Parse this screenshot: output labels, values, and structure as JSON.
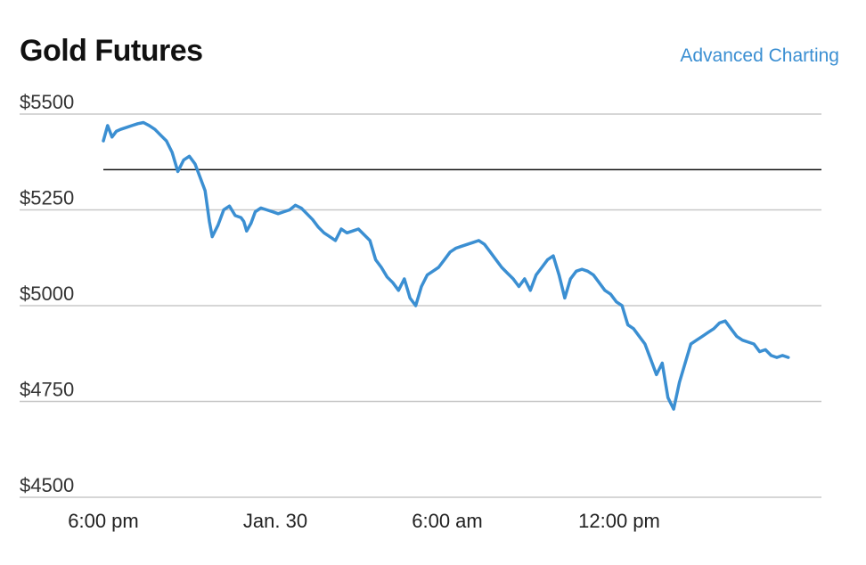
{
  "header": {
    "title": "Gold Futures",
    "link_label": "Advanced Charting"
  },
  "colors": {
    "series": "#3b8fd2",
    "gridline": "#c8c8c8",
    "reference_line": "#111111",
    "link": "#3b8fd2"
  },
  "chart_data": {
    "type": "line",
    "title": "Gold Futures",
    "xlabel": "",
    "ylabel": "",
    "ylim": [
      4500,
      5500
    ],
    "yticks": [
      5500,
      5250,
      5000,
      4750,
      4500
    ],
    "ytick_labels": [
      "$5500",
      "$5250",
      "$5000",
      "$4750",
      "$4500"
    ],
    "y_tick_label_position": "above-gridline-left",
    "xlim": [
      0,
      24
    ],
    "xticks": [
      0,
      6,
      12,
      18
    ],
    "xtick_labels": [
      "6:00 pm",
      "Jan. 30",
      "6:00 am",
      "12:00 pm"
    ],
    "x_unit": "hours from 6:00 pm (Jan. 29)",
    "grid": "horizontal",
    "legend": "none",
    "reference_line": 5355,
    "series": [
      {
        "x": [
          0,
          0.15,
          0.3,
          0.45,
          0.6,
          0.8,
          1.0,
          1.2,
          1.4,
          1.6,
          1.8,
          2.0,
          2.2,
          2.4,
          2.6,
          2.8,
          3.0,
          3.2,
          3.4,
          3.55,
          3.7,
          3.8,
          4.0,
          4.2,
          4.4,
          4.6,
          4.8,
          4.9,
          5.0,
          5.15,
          5.3,
          5.5,
          5.7,
          5.9,
          6.1,
          6.3,
          6.5,
          6.7,
          6.9,
          7.1,
          7.3,
          7.5,
          7.7,
          7.9,
          8.1,
          8.3,
          8.5,
          8.7,
          8.9,
          9.1,
          9.3,
          9.5,
          9.7,
          9.9,
          10.1,
          10.3,
          10.5,
          10.7,
          10.9,
          11.1,
          11.3,
          11.5,
          11.7,
          11.9,
          12.1,
          12.3,
          12.5,
          12.7,
          12.9,
          13.1,
          13.3,
          13.5,
          13.7,
          13.9,
          14.1,
          14.3,
          14.5,
          14.7,
          14.9,
          15.1,
          15.3,
          15.5,
          15.7,
          15.9,
          16.1,
          16.3,
          16.5,
          16.7,
          16.9,
          17.1,
          17.3,
          17.5,
          17.7,
          17.9,
          18.1,
          18.3,
          18.5,
          18.7,
          18.9,
          19.1,
          19.3,
          19.5,
          19.7,
          19.9,
          20.1,
          20.3,
          20.5,
          20.7,
          20.9,
          21.1,
          21.3,
          21.5,
          21.7,
          21.9,
          22.1,
          22.3,
          22.5,
          22.7,
          22.9,
          23.1,
          23.3,
          23.5,
          23.7,
          23.9
        ],
        "y": [
          5430,
          5470,
          5440,
          5455,
          5460,
          5465,
          5470,
          5475,
          5478,
          5470,
          5460,
          5445,
          5430,
          5400,
          5350,
          5380,
          5390,
          5370,
          5330,
          5300,
          5220,
          5180,
          5210,
          5250,
          5260,
          5235,
          5230,
          5220,
          5195,
          5215,
          5245,
          5255,
          5250,
          5245,
          5240,
          5245,
          5250,
          5262,
          5255,
          5240,
          5225,
          5205,
          5190,
          5180,
          5170,
          5200,
          5190,
          5195,
          5200,
          5185,
          5170,
          5120,
          5100,
          5075,
          5060,
          5040,
          5070,
          5020,
          5000,
          5050,
          5080,
          5090,
          5100,
          5120,
          5140,
          5150,
          5155,
          5160,
          5165,
          5170,
          5160,
          5140,
          5120,
          5100,
          5085,
          5070,
          5050,
          5070,
          5040,
          5080,
          5100,
          5120,
          5130,
          5080,
          5020,
          5070,
          5090,
          5095,
          5090,
          5080,
          5060,
          5040,
          5030,
          5010,
          5000,
          4950,
          4940,
          4920,
          4900,
          4860,
          4820,
          4850,
          4760,
          4730,
          4800,
          4850,
          4900,
          4910,
          4920,
          4930,
          4940,
          4955,
          4960,
          4940,
          4920,
          4910,
          4905,
          4900,
          4880,
          4885,
          4870,
          4865,
          4870,
          4865
        ]
      }
    ]
  }
}
